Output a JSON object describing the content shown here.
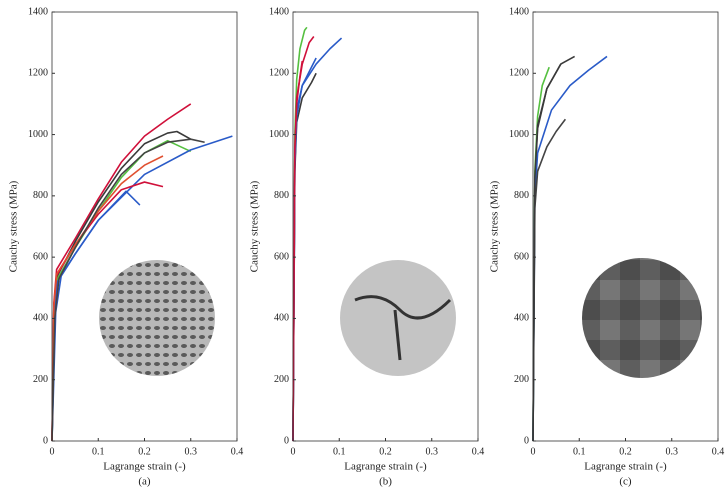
{
  "chart_data": [
    {
      "type": "line",
      "caption": "(a)",
      "xlabel": "Lagrange strain (-)",
      "ylabel": "Cauchy stress (MPa)",
      "xlim": [
        0,
        0.4
      ],
      "ylim": [
        0,
        1400
      ],
      "xticks": [
        0,
        0.1,
        0.2,
        0.3,
        0.4
      ],
      "yticks": [
        0,
        200,
        400,
        600,
        800,
        1000,
        1200,
        1400
      ],
      "series": [
        {
          "color": "#d0103a",
          "x": [
            0,
            0.004,
            0.01,
            0.05,
            0.1,
            0.15,
            0.2,
            0.25,
            0.3
          ],
          "values": [
            0,
            450,
            560,
            660,
            790,
            910,
            995,
            1050,
            1100
          ]
        },
        {
          "color": "#3a3a3a",
          "x": [
            0,
            0.006,
            0.012,
            0.05,
            0.1,
            0.15,
            0.2,
            0.25,
            0.27,
            0.3
          ],
          "values": [
            0,
            430,
            540,
            650,
            780,
            890,
            970,
            1005,
            1010,
            985
          ]
        },
        {
          "color": "#55c040",
          "x": [
            0,
            0.005,
            0.012,
            0.05,
            0.1,
            0.15,
            0.2,
            0.25,
            0.3
          ],
          "values": [
            0,
            420,
            530,
            630,
            750,
            860,
            940,
            980,
            945
          ]
        },
        {
          "color": "#2a5bc8",
          "x": [
            0,
            0.008,
            0.02,
            0.05,
            0.1,
            0.2,
            0.3,
            0.39
          ],
          "values": [
            0,
            420,
            540,
            610,
            720,
            870,
            950,
            995
          ]
        },
        {
          "color": "#2a5bc8",
          "x": [
            0,
            0.005,
            0.012,
            0.05,
            0.1,
            0.16,
            0.19
          ],
          "values": [
            0,
            410,
            520,
            610,
            720,
            815,
            770
          ]
        },
        {
          "color": "#d0103a",
          "x": [
            0,
            0.004,
            0.01,
            0.05,
            0.1,
            0.15,
            0.2,
            0.24
          ],
          "values": [
            0,
            440,
            540,
            640,
            740,
            820,
            845,
            830
          ]
        },
        {
          "color": "#e05030",
          "x": [
            0,
            0.004,
            0.01,
            0.05,
            0.1,
            0.15,
            0.2,
            0.24
          ],
          "values": [
            0,
            440,
            545,
            640,
            750,
            840,
            900,
            930
          ]
        },
        {
          "color": "#444444",
          "x": [
            0,
            0.006,
            0.015,
            0.05,
            0.1,
            0.15,
            0.2,
            0.25,
            0.3,
            0.33
          ],
          "values": [
            0,
            400,
            530,
            630,
            760,
            870,
            940,
            975,
            985,
            975
          ]
        }
      ]
    },
    {
      "type": "line",
      "caption": "(b)",
      "xlabel": "Lagrange strain (-)",
      "ylabel": "Cauchy stress (MPa)",
      "xlim": [
        0,
        0.4
      ],
      "ylim": [
        0,
        1400
      ],
      "xticks": [
        0,
        0.1,
        0.2,
        0.3,
        0.4
      ],
      "yticks": [
        0,
        200,
        400,
        600,
        800,
        1000,
        1200,
        1400
      ],
      "series": [
        {
          "color": "#2a5bc8",
          "x": [
            0,
            0.004,
            0.008,
            0.02,
            0.05,
            0.08,
            0.105
          ],
          "values": [
            0,
            900,
            1080,
            1160,
            1230,
            1280,
            1315
          ]
        },
        {
          "color": "#55c040",
          "x": [
            0,
            0.004,
            0.008,
            0.015,
            0.025,
            0.03
          ],
          "values": [
            0,
            1000,
            1180,
            1280,
            1340,
            1350
          ]
        },
        {
          "color": "#d0103a",
          "x": [
            0,
            0.004,
            0.008,
            0.02,
            0.035,
            0.045
          ],
          "values": [
            0,
            950,
            1120,
            1230,
            1300,
            1320
          ]
        },
        {
          "color": "#3a3a3a",
          "x": [
            0,
            0.004,
            0.008,
            0.02,
            0.04,
            0.05
          ],
          "values": [
            0,
            880,
            1040,
            1120,
            1170,
            1200
          ]
        },
        {
          "color": "#2a5bc8",
          "x": [
            0,
            0.004,
            0.008,
            0.02,
            0.04,
            0.05
          ],
          "values": [
            0,
            900,
            1060,
            1160,
            1220,
            1250
          ]
        },
        {
          "color": "#d0103a",
          "x": [
            0,
            0.004,
            0.008,
            0.015,
            0.02
          ],
          "values": [
            0,
            950,
            1100,
            1190,
            1240
          ]
        }
      ]
    },
    {
      "type": "line",
      "caption": "(c)",
      "xlabel": "Lagrange strain (-)",
      "ylabel": "Cauchy stress (MPa)",
      "xlim": [
        0,
        0.4
      ],
      "ylim": [
        0,
        1400
      ],
      "xticks": [
        0,
        0.1,
        0.2,
        0.3,
        0.4
      ],
      "yticks": [
        0,
        200,
        400,
        600,
        800,
        1000,
        1200,
        1400
      ],
      "series": [
        {
          "color": "#3a3a3a",
          "x": [
            0,
            0.004,
            0.01,
            0.03,
            0.06,
            0.09
          ],
          "values": [
            0,
            850,
            1020,
            1150,
            1230,
            1255
          ]
        },
        {
          "color": "#55c040",
          "x": [
            0,
            0.004,
            0.01,
            0.02,
            0.035
          ],
          "values": [
            0,
            880,
            1060,
            1160,
            1220
          ]
        },
        {
          "color": "#2a5bc8",
          "x": [
            0,
            0.004,
            0.01,
            0.04,
            0.08,
            0.12,
            0.16
          ],
          "values": [
            0,
            800,
            940,
            1080,
            1160,
            1210,
            1255
          ]
        },
        {
          "color": "#444444",
          "x": [
            0,
            0.004,
            0.01,
            0.03,
            0.05,
            0.07
          ],
          "values": [
            0,
            760,
            880,
            960,
            1010,
            1050
          ]
        },
        {
          "color": "#3a3a3a",
          "x": [
            0,
            0.004,
            0.01,
            0.03,
            0.06
          ],
          "values": [
            0,
            860,
            1030,
            1150,
            1230
          ]
        }
      ]
    }
  ]
}
